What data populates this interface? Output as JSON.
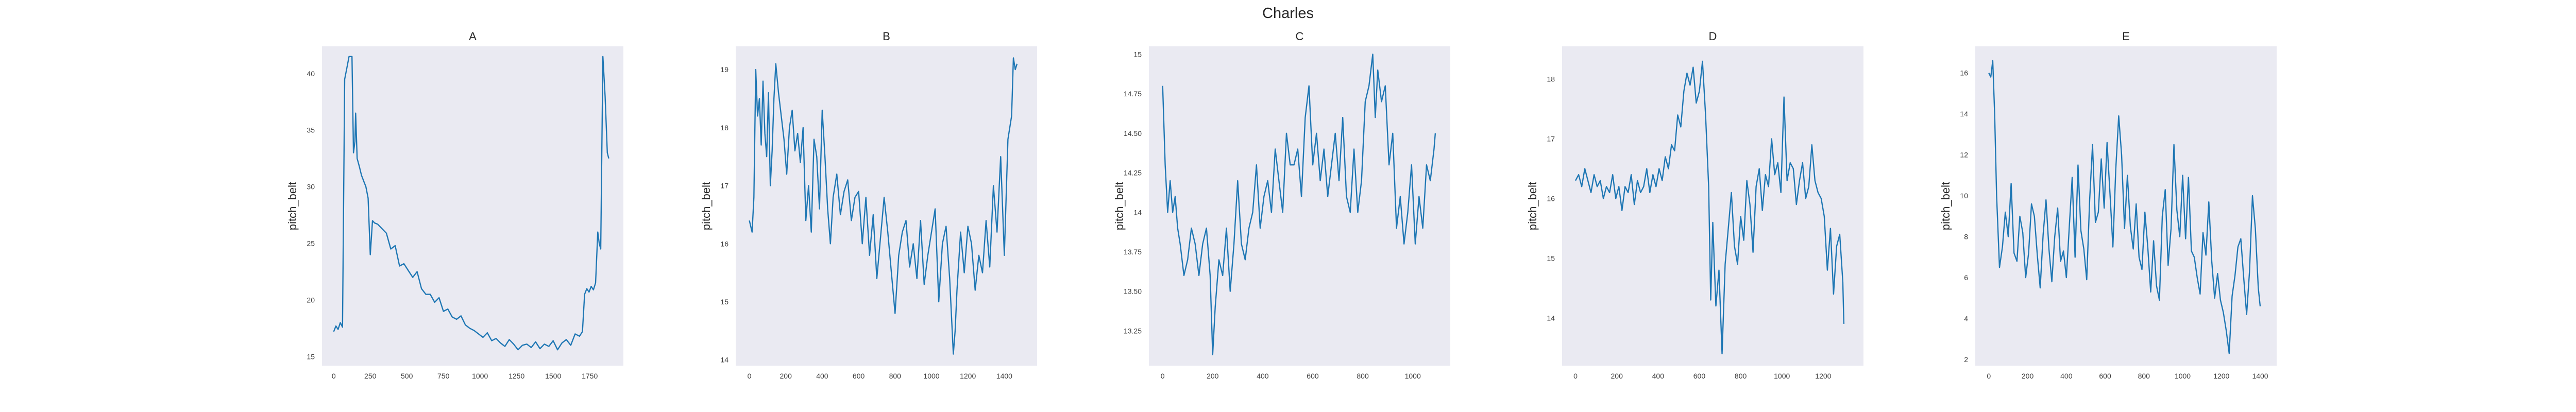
{
  "title": "Charles",
  "chart_data": [
    {
      "type": "line",
      "title": "A",
      "ylabel": "pitch_belt",
      "xlim": [
        -80,
        1980
      ],
      "ylim": [
        14.2,
        42.4
      ],
      "xticks": [
        0,
        250,
        500,
        750,
        1000,
        1250,
        1500,
        1750
      ],
      "yticks": [
        15,
        20,
        25,
        30,
        35,
        40
      ],
      "series": [
        {
          "x": [
            0,
            15,
            30,
            45,
            60,
            75,
            90,
            105,
            115,
            125,
            135,
            145,
            150,
            160,
            175,
            190,
            205,
            220,
            235,
            250,
            265,
            280,
            300,
            330,
            360,
            390,
            420,
            450,
            480,
            510,
            540,
            570,
            600,
            630,
            660,
            690,
            720,
            750,
            780,
            810,
            840,
            870,
            900,
            930,
            960,
            990,
            1020,
            1050,
            1080,
            1110,
            1140,
            1170,
            1200,
            1230,
            1260,
            1290,
            1320,
            1350,
            1380,
            1410,
            1440,
            1470,
            1500,
            1530,
            1560,
            1590,
            1620,
            1650,
            1680,
            1700,
            1715,
            1730,
            1745,
            1760,
            1775,
            1790,
            1805,
            1815,
            1825,
            1840,
            1855,
            1870,
            1880
          ],
          "y": [
            17.2,
            17.7,
            17.4,
            18.0,
            17.6,
            39.5,
            40.5,
            41.5,
            41.5,
            41.5,
            33.0,
            34.0,
            36.5,
            32.5,
            31.8,
            31.0,
            30.5,
            30.0,
            29.0,
            24.0,
            27.0,
            26.8,
            26.7,
            26.3,
            25.9,
            24.5,
            24.8,
            23.0,
            23.2,
            22.6,
            22.0,
            22.5,
            21.0,
            20.5,
            20.5,
            19.8,
            20.2,
            19.0,
            19.2,
            18.5,
            18.3,
            18.6,
            17.8,
            17.5,
            17.3,
            17.0,
            16.7,
            17.1,
            16.4,
            16.6,
            16.2,
            15.9,
            16.5,
            16.1,
            15.6,
            16.0,
            16.1,
            15.8,
            16.3,
            15.7,
            16.1,
            15.9,
            16.4,
            15.6,
            16.2,
            16.5,
            16.0,
            17.0,
            16.8,
            17.2,
            20.5,
            21.0,
            20.7,
            21.2,
            20.9,
            21.5,
            26.0,
            25.0,
            24.5,
            41.5,
            38.0,
            33.0,
            32.5
          ]
        }
      ]
    },
    {
      "type": "line",
      "title": "B",
      "ylabel": "pitch_belt",
      "xlim": [
        -75,
        1580
      ],
      "ylim": [
        13.9,
        19.4
      ],
      "xticks": [
        0,
        200,
        400,
        600,
        800,
        1000,
        1200,
        1400
      ],
      "yticks": [
        14,
        15,
        16,
        17,
        18,
        19
      ],
      "series": [
        {
          "x": [
            0,
            15,
            25,
            35,
            45,
            55,
            65,
            75,
            85,
            95,
            105,
            115,
            125,
            135,
            145,
            160,
            175,
            190,
            205,
            220,
            235,
            250,
            265,
            280,
            295,
            310,
            325,
            340,
            355,
            370,
            385,
            400,
            415,
            430,
            445,
            460,
            480,
            500,
            520,
            540,
            560,
            580,
            600,
            620,
            640,
            660,
            680,
            700,
            720,
            740,
            760,
            780,
            800,
            820,
            840,
            860,
            880,
            900,
            920,
            940,
            960,
            980,
            1000,
            1020,
            1040,
            1060,
            1080,
            1100,
            1120,
            1130,
            1140,
            1160,
            1180,
            1200,
            1220,
            1240,
            1260,
            1280,
            1300,
            1320,
            1340,
            1360,
            1380,
            1400,
            1420,
            1440,
            1450,
            1460,
            1470
          ],
          "y": [
            16.4,
            16.2,
            16.8,
            19.0,
            18.2,
            18.5,
            17.7,
            18.8,
            17.9,
            17.5,
            18.6,
            17.0,
            17.6,
            18.5,
            19.1,
            18.6,
            18.2,
            17.8,
            17.2,
            18.0,
            18.3,
            17.6,
            17.9,
            17.4,
            18.0,
            16.4,
            17.0,
            16.2,
            17.8,
            17.5,
            16.6,
            18.3,
            17.5,
            16.6,
            16.0,
            16.8,
            17.2,
            16.5,
            16.9,
            17.1,
            16.4,
            16.8,
            16.9,
            16.0,
            16.8,
            15.8,
            16.5,
            15.4,
            16.1,
            16.8,
            16.2,
            15.5,
            14.8,
            15.8,
            16.2,
            16.4,
            15.6,
            16.0,
            15.4,
            16.4,
            15.3,
            15.8,
            16.2,
            16.6,
            15.0,
            16.0,
            16.3,
            15.4,
            14.1,
            14.5,
            15.2,
            16.2,
            15.5,
            16.3,
            16.0,
            15.2,
            15.8,
            15.5,
            16.4,
            15.6,
            17.0,
            16.2,
            17.5,
            15.8,
            17.8,
            18.2,
            19.2,
            19.0,
            19.1
          ]
        }
      ]
    },
    {
      "type": "line",
      "title": "C",
      "ylabel": "pitch_belt",
      "xlim": [
        -55,
        1150
      ],
      "ylim": [
        13.03,
        15.05
      ],
      "xticks": [
        0,
        200,
        400,
        600,
        800,
        1000
      ],
      "yticks": [
        13.25,
        13.5,
        13.75,
        14.0,
        14.25,
        14.5,
        14.75,
        15.0
      ],
      "series": [
        {
          "x": [
            0,
            10,
            20,
            30,
            40,
            50,
            60,
            70,
            85,
            100,
            115,
            130,
            145,
            160,
            175,
            190,
            200,
            210,
            225,
            240,
            255,
            270,
            285,
            300,
            315,
            330,
            345,
            360,
            375,
            390,
            405,
            420,
            435,
            450,
            465,
            480,
            495,
            510,
            525,
            540,
            555,
            570,
            585,
            600,
            615,
            630,
            645,
            660,
            675,
            690,
            705,
            720,
            735,
            750,
            765,
            780,
            795,
            810,
            825,
            840,
            850,
            860,
            875,
            890,
            905,
            920,
            935,
            950,
            965,
            980,
            995,
            1010,
            1025,
            1040,
            1055,
            1070,
            1085,
            1090
          ],
          "y": [
            14.8,
            14.3,
            14.0,
            14.2,
            14.0,
            14.1,
            13.9,
            13.8,
            13.6,
            13.7,
            13.9,
            13.8,
            13.6,
            13.8,
            13.9,
            13.6,
            13.1,
            13.4,
            13.7,
            13.6,
            13.9,
            13.5,
            13.8,
            14.2,
            13.8,
            13.7,
            13.9,
            14.0,
            14.3,
            13.9,
            14.1,
            14.2,
            14.0,
            14.4,
            14.2,
            14.0,
            14.5,
            14.3,
            14.3,
            14.4,
            14.1,
            14.6,
            14.8,
            14.3,
            14.5,
            14.2,
            14.4,
            14.1,
            14.3,
            14.5,
            14.2,
            14.6,
            14.1,
            14.0,
            14.4,
            14.0,
            14.2,
            14.7,
            14.8,
            15.0,
            14.6,
            14.9,
            14.7,
            14.8,
            14.3,
            14.5,
            13.9,
            14.1,
            13.8,
            14.0,
            14.3,
            13.8,
            14.1,
            13.9,
            14.3,
            14.2,
            14.4,
            14.5
          ]
        }
      ]
    },
    {
      "type": "line",
      "title": "D",
      "ylabel": "pitch_belt",
      "xlim": [
        -65,
        1395
      ],
      "ylim": [
        13.2,
        18.55
      ],
      "xticks": [
        0,
        200,
        400,
        600,
        800,
        1000,
        1200
      ],
      "yticks": [
        14,
        15,
        16,
        17,
        18
      ],
      "series": [
        {
          "x": [
            0,
            15,
            30,
            45,
            60,
            75,
            90,
            105,
            120,
            135,
            150,
            165,
            180,
            195,
            210,
            225,
            240,
            255,
            270,
            285,
            300,
            315,
            330,
            345,
            360,
            375,
            390,
            405,
            420,
            435,
            450,
            465,
            480,
            495,
            510,
            525,
            540,
            555,
            570,
            585,
            600,
            615,
            630,
            645,
            655,
            665,
            680,
            695,
            710,
            725,
            740,
            755,
            770,
            785,
            800,
            815,
            830,
            845,
            860,
            875,
            890,
            905,
            920,
            935,
            950,
            965,
            980,
            995,
            1010,
            1025,
            1040,
            1055,
            1070,
            1085,
            1100,
            1115,
            1130,
            1145,
            1160,
            1175,
            1190,
            1205,
            1220,
            1235,
            1250,
            1265,
            1280,
            1295,
            1300
          ],
          "y": [
            16.3,
            16.4,
            16.2,
            16.5,
            16.3,
            16.1,
            16.4,
            16.2,
            16.3,
            16.0,
            16.2,
            16.1,
            16.4,
            16.0,
            16.2,
            15.8,
            16.2,
            16.1,
            16.4,
            15.9,
            16.3,
            16.1,
            16.2,
            16.5,
            16.1,
            16.4,
            16.2,
            16.5,
            16.3,
            16.7,
            16.5,
            16.9,
            16.8,
            17.4,
            17.2,
            17.8,
            18.1,
            17.9,
            18.2,
            17.6,
            17.8,
            18.3,
            17.4,
            16.2,
            14.3,
            15.6,
            14.2,
            14.8,
            13.4,
            14.9,
            15.5,
            16.1,
            15.2,
            14.9,
            15.7,
            15.3,
            16.3,
            15.9,
            15.1,
            16.2,
            16.5,
            15.8,
            16.4,
            16.2,
            17.0,
            16.4,
            16.6,
            16.1,
            17.7,
            16.3,
            16.6,
            16.5,
            15.9,
            16.3,
            16.6,
            16.0,
            16.2,
            16.9,
            16.3,
            16.1,
            16.0,
            15.7,
            14.8,
            15.5,
            14.4,
            15.2,
            15.4,
            14.6,
            13.9
          ]
        }
      ]
    },
    {
      "type": "line",
      "title": "E",
      "ylabel": "pitch_belt",
      "xlim": [
        -70,
        1485
      ],
      "ylim": [
        1.7,
        17.3
      ],
      "xticks": [
        0,
        200,
        400,
        600,
        800,
        1000,
        1200,
        1400
      ],
      "yticks": [
        2,
        4,
        6,
        8,
        10,
        12,
        14,
        16
      ],
      "series": [
        {
          "x": [
            0,
            10,
            20,
            30,
            40,
            55,
            70,
            85,
            100,
            115,
            130,
            145,
            160,
            175,
            190,
            205,
            220,
            235,
            250,
            265,
            280,
            295,
            310,
            325,
            340,
            355,
            370,
            385,
            400,
            415,
            430,
            445,
            460,
            475,
            490,
            505,
            520,
            535,
            550,
            565,
            580,
            595,
            610,
            625,
            640,
            655,
            670,
            685,
            700,
            715,
            730,
            745,
            760,
            775,
            790,
            805,
            820,
            835,
            850,
            865,
            880,
            895,
            910,
            925,
            940,
            955,
            970,
            985,
            1000,
            1015,
            1030,
            1045,
            1060,
            1075,
            1090,
            1105,
            1120,
            1135,
            1150,
            1165,
            1180,
            1195,
            1210,
            1225,
            1240,
            1255,
            1270,
            1285,
            1300,
            1315,
            1330,
            1345,
            1360,
            1375,
            1390,
            1400
          ],
          "y": [
            16.0,
            15.8,
            16.6,
            14.0,
            10.0,
            6.5,
            7.5,
            9.2,
            8.0,
            10.6,
            7.2,
            6.8,
            9.0,
            8.2,
            6.0,
            7.2,
            9.6,
            9.0,
            7.1,
            5.5,
            8.1,
            9.8,
            7.4,
            5.8,
            8.0,
            9.4,
            6.8,
            7.3,
            6.0,
            8.5,
            10.9,
            7.0,
            11.5,
            8.3,
            7.4,
            5.9,
            9.8,
            12.5,
            8.7,
            9.2,
            11.8,
            9.4,
            12.6,
            10.1,
            7.5,
            11.3,
            13.9,
            12.0,
            8.4,
            11.0,
            8.5,
            7.4,
            9.6,
            7.0,
            6.4,
            9.2,
            7.5,
            5.3,
            7.8,
            5.6,
            4.9,
            9.0,
            10.3,
            6.6,
            8.4,
            12.5,
            9.3,
            8.0,
            11.0,
            7.9,
            10.9,
            7.3,
            7.0,
            6.0,
            5.2,
            8.2,
            7.1,
            9.7,
            6.8,
            5.0,
            6.2,
            4.9,
            4.3,
            3.4,
            2.3,
            5.1,
            6.1,
            7.5,
            7.9,
            6.0,
            4.2,
            6.3,
            10.0,
            8.4,
            5.5,
            4.6
          ]
        }
      ]
    }
  ]
}
